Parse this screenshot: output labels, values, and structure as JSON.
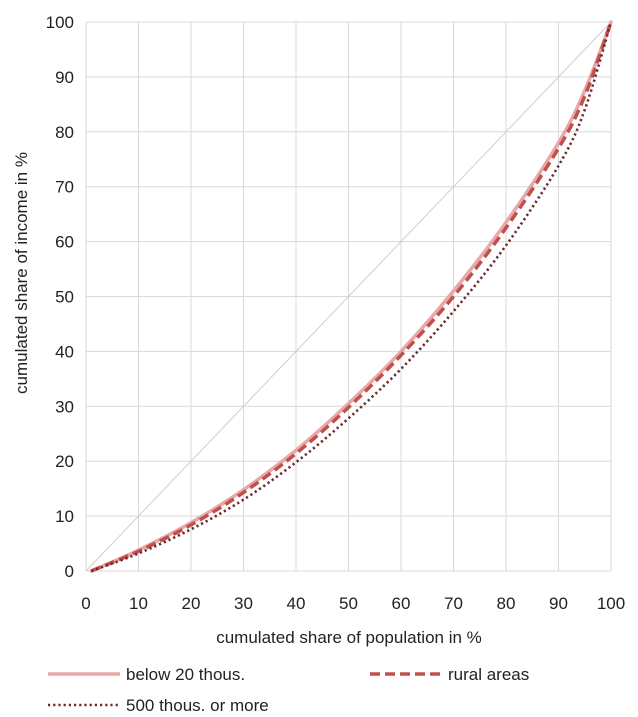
{
  "chart_data": {
    "type": "line",
    "title": "",
    "xlabel": "cumulated share of population in %",
    "ylabel": "cumulated share of income in %",
    "xlim": [
      0,
      100
    ],
    "ylim": [
      0,
      100
    ],
    "x_ticks": [
      0,
      10,
      20,
      30,
      40,
      50,
      60,
      70,
      80,
      90,
      100
    ],
    "y_ticks": [
      0,
      10,
      20,
      30,
      40,
      50,
      60,
      70,
      80,
      90,
      100
    ],
    "grid": true,
    "legend_position": "bottom",
    "equality_line": {
      "x": [
        0,
        100
      ],
      "y": [
        0,
        100
      ],
      "color": "#cfcfcf"
    },
    "series": [
      {
        "name": "below 20 thous.",
        "style": "solid",
        "color": "#e8a8a8",
        "x": [
          1,
          10,
          20,
          30,
          40,
          50,
          60,
          70,
          80,
          90,
          95,
          100
        ],
        "y": [
          0,
          3.8,
          8.8,
          14.8,
          22.0,
          30.5,
          40.0,
          51.0,
          63.5,
          78.0,
          87.5,
          100
        ]
      },
      {
        "name": "rural areas",
        "style": "dashed",
        "color": "#c0504d",
        "x": [
          1,
          10,
          20,
          30,
          40,
          50,
          60,
          70,
          80,
          90,
          95,
          100
        ],
        "y": [
          0,
          3.6,
          8.4,
          14.3,
          21.4,
          29.8,
          39.3,
          50.0,
          62.5,
          77.0,
          86.5,
          100
        ]
      },
      {
        "name": "500 thous. or more",
        "style": "dotted",
        "color": "#6b2a2a",
        "x": [
          1,
          10,
          20,
          30,
          40,
          50,
          60,
          70,
          80,
          90,
          95,
          100
        ],
        "y": [
          0,
          3.2,
          7.6,
          13.0,
          19.8,
          27.8,
          36.8,
          47.3,
          59.3,
          73.8,
          84.0,
          100
        ]
      }
    ]
  }
}
